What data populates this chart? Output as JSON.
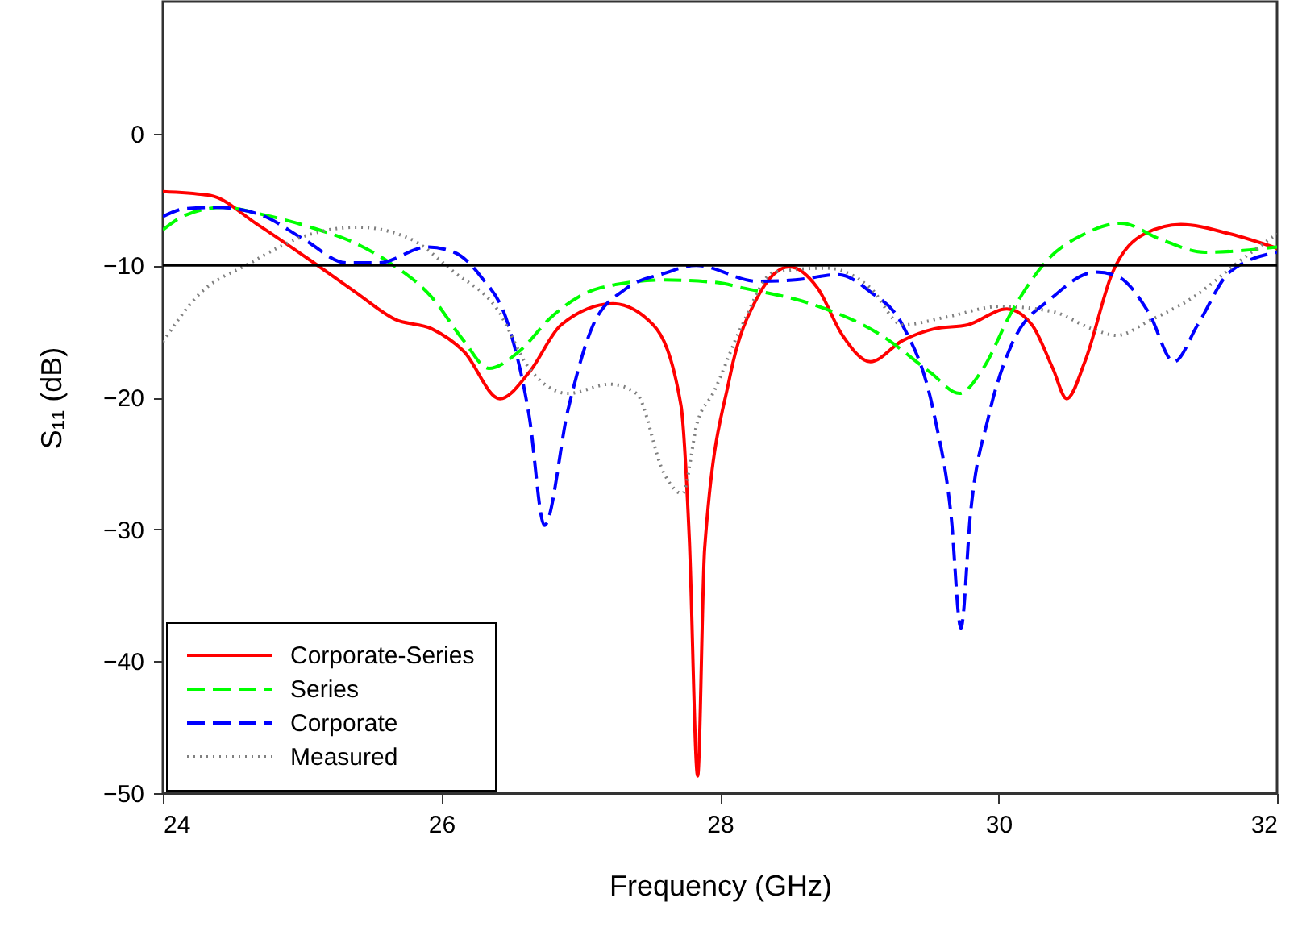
{
  "chart_data": {
    "type": "line",
    "xlabel": "Frequency (GHz)",
    "ylabel": "S₁₁ (dB)",
    "xlim": [
      24,
      32
    ],
    "ylim": [
      -50,
      10
    ],
    "xticks": [
      24,
      26,
      28,
      30,
      32
    ],
    "yticks": [
      -50,
      -40,
      -30,
      -20,
      -10,
      0
    ],
    "grid": false,
    "legend": "bottom left",
    "marker": "none",
    "ref_lines": [
      {
        "axis": "y",
        "value": -10,
        "color": "#000000"
      }
    ],
    "series": [
      {
        "name": "Corporate-Series",
        "color": "#ff0000",
        "line_style": "solid",
        "x": [
          24.0,
          24.34,
          24.68,
          25.03,
          25.38,
          25.67,
          25.93,
          26.16,
          26.42,
          26.63,
          26.86,
          27.23,
          27.52,
          27.72,
          27.78,
          27.84,
          27.89,
          28.07,
          28.27,
          28.5,
          28.7,
          28.88,
          29.08,
          29.31,
          29.54,
          29.78,
          30.06,
          30.24,
          30.39,
          30.49,
          30.62,
          30.82,
          31.05,
          31.31,
          31.66,
          32.0
        ],
        "values": [
          -4.4,
          -4.7,
          -6.9,
          -9.4,
          -12.0,
          -14.1,
          -14.8,
          -16.5,
          -20.1,
          -18.1,
          -14.5,
          -12.9,
          -14.5,
          -20.6,
          -30.7,
          -48.7,
          -31.5,
          -18.5,
          -12.4,
          -10.1,
          -11.7,
          -15.3,
          -17.3,
          -15.7,
          -14.8,
          -14.5,
          -13.3,
          -14.5,
          -17.8,
          -20.1,
          -17.3,
          -10.5,
          -7.6,
          -6.9,
          -7.6,
          -8.7
        ]
      },
      {
        "name": "Series",
        "color": "#00ff00",
        "line_style": "dashed",
        "x": [
          24.0,
          24.16,
          24.43,
          24.74,
          25.09,
          25.4,
          25.63,
          25.93,
          26.16,
          26.34,
          26.56,
          26.79,
          27.14,
          27.6,
          27.98,
          28.16,
          28.65,
          29.16,
          29.51,
          29.72,
          29.89,
          30.09,
          30.35,
          30.62,
          30.88,
          31.16,
          31.48,
          32.0
        ],
        "values": [
          -7.3,
          -6.2,
          -5.6,
          -6.2,
          -7.2,
          -8.4,
          -9.8,
          -12.4,
          -15.7,
          -17.8,
          -16.5,
          -13.9,
          -11.7,
          -11.1,
          -11.3,
          -11.7,
          -12.9,
          -15.3,
          -18.1,
          -19.7,
          -17.8,
          -13.6,
          -9.6,
          -7.6,
          -6.8,
          -8.0,
          -9.0,
          -8.6
        ]
      },
      {
        "name": "Corporate",
        "color": "#0000ff",
        "line_style": "dashed",
        "x": [
          24.0,
          24.16,
          24.39,
          24.71,
          25.01,
          25.32,
          25.55,
          25.9,
          26.09,
          26.28,
          26.48,
          26.63,
          26.74,
          26.91,
          27.09,
          27.32,
          27.6,
          27.83,
          28.27,
          28.54,
          28.85,
          29.08,
          29.31,
          29.54,
          29.66,
          29.73,
          29.8,
          29.93,
          30.09,
          30.39,
          30.7,
          30.85,
          31.08,
          31.26,
          31.43,
          31.66,
          32.0
        ],
        "values": [
          -6.3,
          -5.7,
          -5.6,
          -6.2,
          -8.0,
          -9.8,
          -9.8,
          -8.6,
          -9.0,
          -10.8,
          -14.5,
          -21.4,
          -29.7,
          -20.9,
          -14.5,
          -11.8,
          -10.6,
          -10.0,
          -11.2,
          -11.1,
          -10.7,
          -12.0,
          -14.5,
          -21.4,
          -29.0,
          -37.5,
          -28.7,
          -21.4,
          -16.1,
          -12.4,
          -10.5,
          -10.8,
          -13.6,
          -17.3,
          -14.5,
          -10.5,
          -9.0
        ]
      },
      {
        "name": "Measured",
        "color": "#808080",
        "line_style": "dotted",
        "x": [
          24.0,
          24.24,
          24.63,
          25.01,
          25.4,
          25.78,
          26.09,
          26.4,
          26.63,
          26.91,
          27.21,
          27.4,
          27.6,
          27.73,
          27.84,
          27.95,
          28.16,
          28.39,
          28.77,
          29.08,
          29.31,
          29.63,
          30.01,
          30.39,
          30.67,
          30.85,
          31.08,
          31.4,
          31.74,
          32.0
        ],
        "values": [
          -15.8,
          -12.4,
          -9.8,
          -7.8,
          -7.1,
          -8.0,
          -10.5,
          -13.3,
          -17.8,
          -19.7,
          -19.0,
          -19.7,
          -25.8,
          -27.3,
          -21.8,
          -19.7,
          -14.5,
          -10.5,
          -10.2,
          -11.7,
          -14.5,
          -13.9,
          -13.1,
          -13.5,
          -14.8,
          -15.3,
          -14.2,
          -12.4,
          -9.6,
          -7.6
        ]
      }
    ]
  }
}
